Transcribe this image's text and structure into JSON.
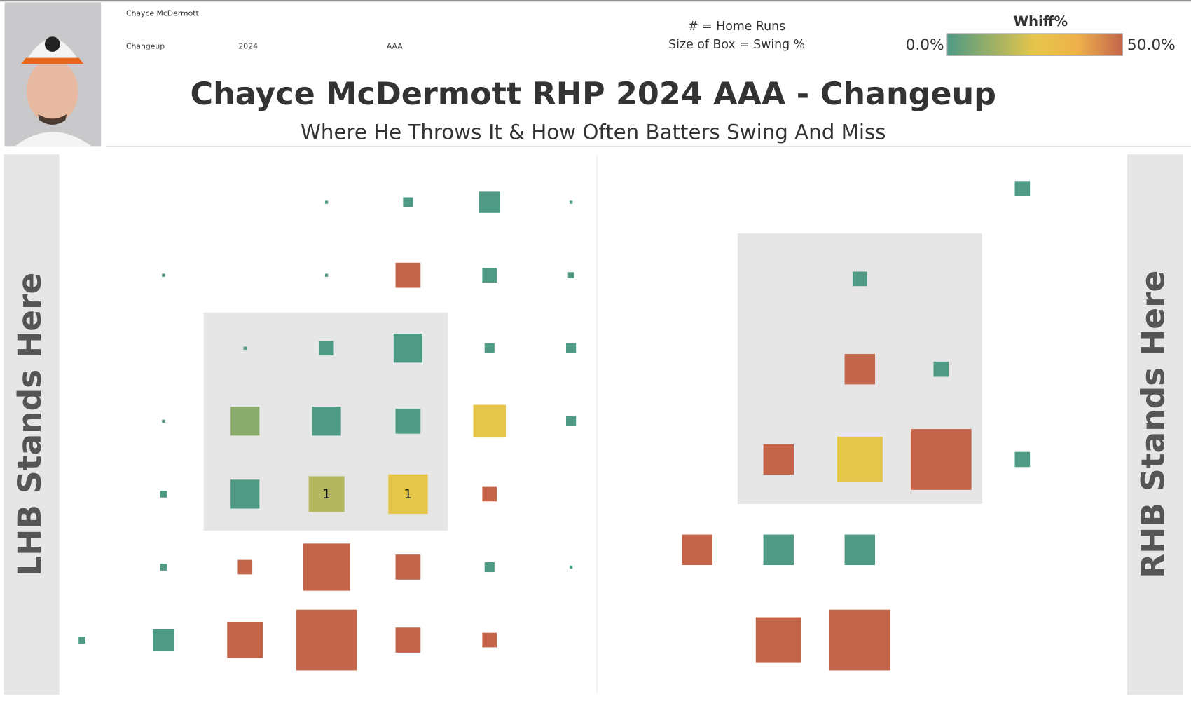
{
  "header": {
    "player_name": "Chayce McDermott",
    "pitch": "Changeup",
    "season": "2024",
    "level": "AAA",
    "title": "Chayce McDermott RHP 2024 AAA - Changeup",
    "subtitle": "Where He Throws It & How Often Batters Swing And Miss",
    "legend_hr": "# = Home Runs",
    "legend_size": "Size of Box = Swing %"
  },
  "color_scale": {
    "title": "Whiff%",
    "lim": [
      0,
      50
    ],
    "ticks": [
      {
        "value": 0,
        "label": "0.0%"
      },
      {
        "value": 50,
        "label": "50.0%"
      }
    ],
    "colors": [
      "#4e9a84",
      "#e6c64a",
      "#efb24a",
      "#c4654a"
    ],
    "stops": [
      0,
      25,
      37,
      50
    ]
  },
  "chart_data": [
    {
      "type": "box-grid",
      "side_label": "LHB Stands Here",
      "x": [
        3,
        4,
        5,
        6,
        1,
        3,
        4,
        5,
        6,
        2,
        3,
        4,
        5,
        6,
        1,
        2,
        3,
        4,
        5,
        6,
        1,
        2,
        3,
        4,
        5,
        1,
        2,
        3,
        4,
        5,
        6,
        0,
        1,
        2,
        3,
        4,
        5
      ],
      "y": [
        0,
        0,
        0,
        0,
        1,
        1,
        1,
        1,
        1,
        2,
        2,
        2,
        2,
        2,
        3,
        3,
        3,
        3,
        3,
        3,
        4,
        4,
        4,
        4,
        4,
        5,
        5,
        5,
        5,
        5,
        5,
        6,
        6,
        6,
        6,
        6,
        6
      ],
      "size": [
        0.2,
        2.1,
        9.7,
        0.2,
        0.2,
        0.2,
        13.4,
        4.5,
        0.8,
        0.2,
        4.5,
        17.8,
        2.1,
        2.1,
        0.2,
        17.8,
        17.8,
        13.4,
        22.8,
        2.1,
        1,
        17.8,
        27.3,
        33.4,
        4.5,
        1,
        4.5,
        47.5,
        13.4,
        2.1,
        0.2,
        1,
        9.7,
        27.3,
        79,
        13.4,
        4.5
      ],
      "values": [
        0,
        0,
        0,
        0,
        0,
        0,
        50,
        0,
        0,
        0,
        0,
        0,
        0,
        0,
        0,
        10,
        0,
        0,
        25,
        0,
        0,
        0,
        16.7,
        25,
        50,
        0,
        50,
        50,
        50,
        0,
        0,
        0,
        0,
        50,
        50,
        50,
        50
      ],
      "home_runs": [
        null,
        null,
        null,
        null,
        null,
        null,
        null,
        null,
        null,
        null,
        null,
        null,
        null,
        null,
        null,
        null,
        null,
        null,
        null,
        null,
        null,
        null,
        1,
        1,
        null,
        null,
        null,
        null,
        null,
        null,
        null,
        null,
        null,
        null,
        null,
        null,
        null
      ]
    },
    {
      "type": "box-grid",
      "side_label": "RHB Stands Here",
      "x": [
        4,
        2,
        2,
        3,
        1,
        2,
        3,
        4,
        0,
        1,
        2,
        1,
        2
      ],
      "y": [
        0,
        1,
        2,
        2,
        3,
        3,
        3,
        3,
        4,
        4,
        4,
        5,
        5
      ],
      "size": [
        4.9,
        4.5,
        19.8,
        4.9,
        19.8,
        44.4,
        79,
        4.9,
        19.8,
        19.8,
        19.8,
        44.4,
        79
      ],
      "values": [
        0,
        0,
        50,
        0,
        50,
        25,
        50,
        0,
        50,
        0,
        0,
        50,
        50
      ],
      "home_runs": [
        null,
        null,
        null,
        null,
        null,
        null,
        null,
        null,
        null,
        null,
        null,
        null,
        null
      ]
    }
  ]
}
